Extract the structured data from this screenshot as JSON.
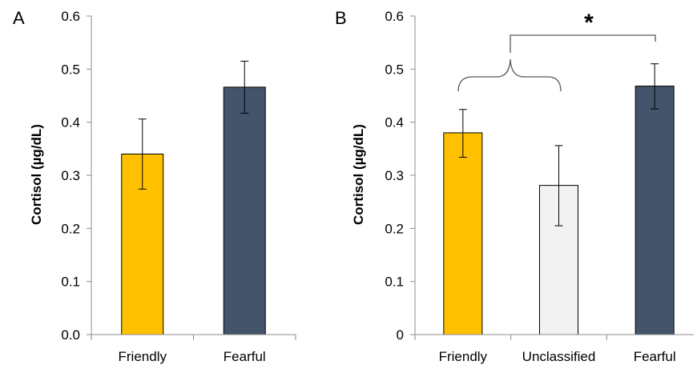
{
  "chart_data": [
    {
      "panel_label": "A",
      "type": "bar",
      "ylabel": "Cortisol (µg/dL)",
      "ylim": [
        0,
        0.6
      ],
      "yticks": [
        "0.0",
        "0.1",
        "0.2",
        "0.3",
        "0.4",
        "0.5",
        "0.6"
      ],
      "categories": [
        "Friendly",
        "Fearful"
      ],
      "values": [
        0.34,
        0.466
      ],
      "error_low": [
        0.274,
        0.417
      ],
      "error_high": [
        0.406,
        0.515
      ],
      "colors": [
        "#ffc000",
        "#44546a"
      ]
    },
    {
      "panel_label": "B",
      "type": "bar",
      "ylabel": "Cortisol (µg/dL)",
      "ylim": [
        0,
        0.6
      ],
      "yticks": [
        "0",
        "0.1",
        "0.2",
        "0.3",
        "0.4",
        "0.5",
        "0.6"
      ],
      "categories": [
        "Friendly",
        "Unclassified",
        "Fearful"
      ],
      "values": [
        0.38,
        0.281,
        0.468
      ],
      "error_low": [
        0.334,
        0.205,
        0.425
      ],
      "error_high": [
        0.424,
        0.356,
        0.51
      ],
      "colors": [
        "#ffc000",
        "#f2f2f2",
        "#44546a"
      ],
      "annotation": "*"
    }
  ]
}
